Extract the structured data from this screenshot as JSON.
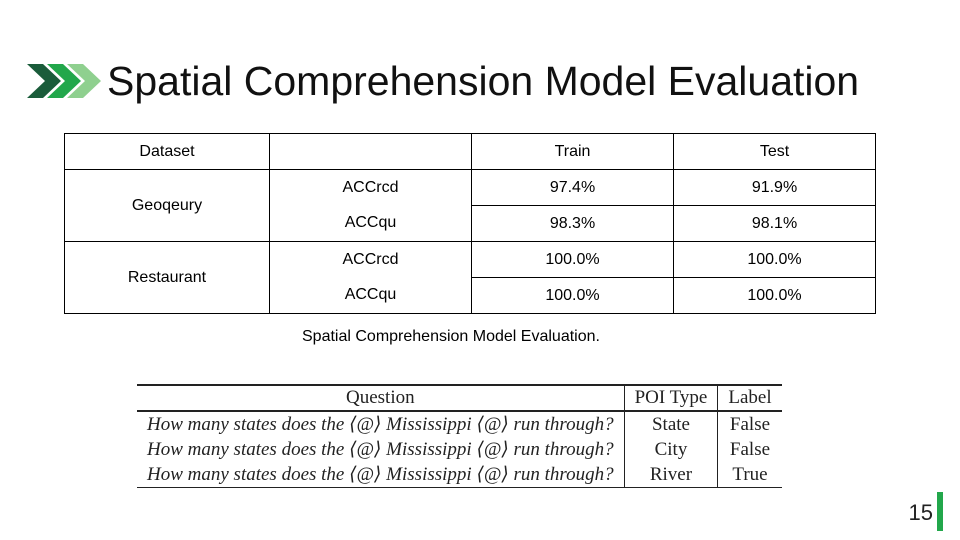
{
  "slide": {
    "title": "Spatial Comprehension Model Evaluation",
    "page_number": "15",
    "accent_color": "#22a74b",
    "chevron_colors": [
      "#1a5c3a",
      "#22a74b",
      "#8fd08f"
    ]
  },
  "results_table": {
    "headers": [
      "Dataset",
      "",
      "Train",
      "Test"
    ],
    "groups": [
      {
        "dataset": "Geoqeury",
        "rows": [
          {
            "metric": "ACCrcd",
            "train": "97.4%",
            "test": "91.9%"
          },
          {
            "metric": "ACCqu",
            "train": "98.3%",
            "test": "98.1%"
          }
        ]
      },
      {
        "dataset": "Restaurant",
        "rows": [
          {
            "metric": "ACCrcd",
            "train": "100.0%",
            "test": "100.0%"
          },
          {
            "metric": "ACCqu",
            "train": "100.0%",
            "test": "100.0%"
          }
        ]
      }
    ],
    "caption": "Spatial Comprehension Model Evaluation."
  },
  "examples_table": {
    "headers": [
      "Question",
      "POI Type",
      "Label"
    ],
    "rows": [
      {
        "question": "How many states does the ⟨@⟩ Mississippi ⟨@⟩ run through?",
        "poi_type": "State",
        "label": "False"
      },
      {
        "question": "How many states does the ⟨@⟩ Mississippi ⟨@⟩ run through?",
        "poi_type": "City",
        "label": "False"
      },
      {
        "question": "How many states does the ⟨@⟩ Mississippi ⟨@⟩ run through?",
        "poi_type": "River",
        "label": "True"
      }
    ]
  }
}
